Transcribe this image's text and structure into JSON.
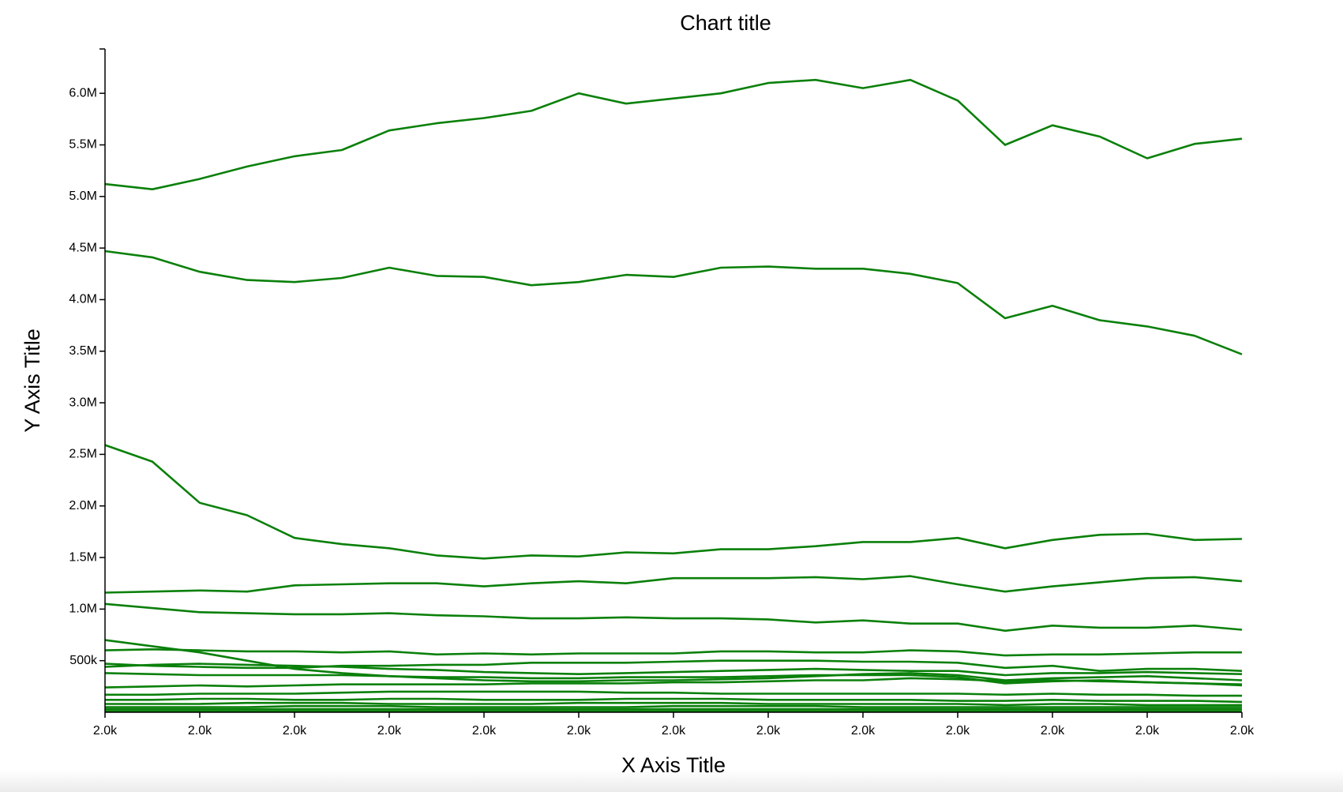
{
  "chart_data": {
    "type": "line",
    "title": "Chart title",
    "x_label": "X Axis Title",
    "y_label": "Y Axis Title",
    "color": "#0a800a",
    "x": [
      2000,
      2001,
      2002,
      2003,
      2004,
      2005,
      2006,
      2007,
      2008,
      2009,
      2010,
      2011,
      2012,
      2013,
      2014,
      2015,
      2016,
      2017,
      2018,
      2019,
      2020,
      2021,
      2022,
      2023,
      2024
    ],
    "xlim": [
      2000,
      2024
    ],
    "xticks": [
      {
        "value": 2000,
        "label": "2.0k"
      },
      {
        "value": 2002,
        "label": "2.0k"
      },
      {
        "value": 2004,
        "label": "2.0k"
      },
      {
        "value": 2006,
        "label": "2.0k"
      },
      {
        "value": 2008,
        "label": "2.0k"
      },
      {
        "value": 2010,
        "label": "2.0k"
      },
      {
        "value": 2012,
        "label": "2.0k"
      },
      {
        "value": 2014,
        "label": "2.0k"
      },
      {
        "value": 2016,
        "label": "2.0k"
      },
      {
        "value": 2018,
        "label": "2.0k"
      },
      {
        "value": 2020,
        "label": "2.0k"
      },
      {
        "value": 2022,
        "label": "2.0k"
      },
      {
        "value": 2024,
        "label": "2.0k"
      }
    ],
    "ylim": [
      0,
      6430000
    ],
    "yticks": [
      {
        "value": 500000,
        "label": "500k"
      },
      {
        "value": 1000000,
        "label": "1.0M"
      },
      {
        "value": 1500000,
        "label": "1.5M"
      },
      {
        "value": 2000000,
        "label": "2.0M"
      },
      {
        "value": 2500000,
        "label": "2.5M"
      },
      {
        "value": 3000000,
        "label": "3.0M"
      },
      {
        "value": 3500000,
        "label": "3.5M"
      },
      {
        "value": 4000000,
        "label": "4.0M"
      },
      {
        "value": 4500000,
        "label": "4.5M"
      },
      {
        "value": 5000000,
        "label": "5.0M"
      },
      {
        "value": 5500000,
        "label": "5.5M"
      },
      {
        "value": 6000000,
        "label": "6.0M"
      }
    ],
    "series": [
      {
        "values": [
          5120000,
          5070000,
          5170000,
          5290000,
          5390000,
          5450000,
          5640000,
          5710000,
          5760000,
          5830000,
          6000000,
          5900000,
          5950000,
          6000000,
          6100000,
          6130000,
          6050000,
          6130000,
          5930000,
          5500000,
          5690000,
          5580000,
          5370000,
          5510000,
          5560000
        ]
      },
      {
        "values": [
          4470000,
          4410000,
          4270000,
          4190000,
          4170000,
          4210000,
          4310000,
          4230000,
          4220000,
          4140000,
          4170000,
          4240000,
          4220000,
          4310000,
          4320000,
          4300000,
          4300000,
          4250000,
          4160000,
          3820000,
          3940000,
          3800000,
          3740000,
          3650000,
          3470000
        ]
      },
      {
        "values": [
          2590000,
          2430000,
          2030000,
          1910000,
          1690000,
          1630000,
          1590000,
          1520000,
          1490000,
          1520000,
          1510000,
          1550000,
          1540000,
          1580000,
          1580000,
          1610000,
          1650000,
          1650000,
          1690000,
          1590000,
          1670000,
          1720000,
          1730000,
          1670000,
          1680000
        ]
      },
      {
        "values": [
          1160000,
          1170000,
          1180000,
          1170000,
          1230000,
          1240000,
          1250000,
          1250000,
          1220000,
          1250000,
          1270000,
          1250000,
          1300000,
          1300000,
          1300000,
          1310000,
          1290000,
          1320000,
          1240000,
          1170000,
          1220000,
          1260000,
          1300000,
          1310000,
          1270000
        ]
      },
      {
        "values": [
          1050000,
          1010000,
          970000,
          960000,
          950000,
          950000,
          960000,
          940000,
          930000,
          910000,
          910000,
          920000,
          910000,
          910000,
          900000,
          870000,
          890000,
          860000,
          860000,
          790000,
          840000,
          820000,
          820000,
          840000,
          800000
        ]
      },
      {
        "values": [
          600000,
          610000,
          600000,
          590000,
          590000,
          580000,
          590000,
          560000,
          570000,
          560000,
          570000,
          570000,
          570000,
          590000,
          590000,
          580000,
          580000,
          600000,
          590000,
          550000,
          560000,
          560000,
          570000,
          580000,
          580000
        ]
      },
      {
        "values": [
          700000,
          640000,
          580000,
          500000,
          420000,
          380000,
          350000,
          330000,
          310000,
          300000,
          300000,
          310000,
          310000,
          320000,
          330000,
          350000,
          370000,
          380000,
          360000,
          310000,
          330000,
          340000,
          350000,
          330000,
          310000
        ]
      },
      {
        "values": [
          470000,
          450000,
          440000,
          430000,
          430000,
          450000,
          450000,
          460000,
          460000,
          480000,
          480000,
          480000,
          490000,
          500000,
          500000,
          500000,
          490000,
          490000,
          480000,
          430000,
          450000,
          400000,
          420000,
          420000,
          400000
        ]
      },
      {
        "values": [
          440000,
          460000,
          470000,
          460000,
          450000,
          440000,
          420000,
          410000,
          390000,
          380000,
          370000,
          380000,
          390000,
          400000,
          410000,
          420000,
          410000,
          400000,
          400000,
          360000,
          380000,
          380000,
          390000,
          380000,
          370000
        ]
      },
      {
        "values": [
          380000,
          370000,
          360000,
          360000,
          360000,
          360000,
          350000,
          340000,
          340000,
          330000,
          330000,
          340000,
          340000,
          340000,
          350000,
          360000,
          360000,
          360000,
          340000,
          280000,
          300000,
          310000,
          290000,
          280000,
          260000
        ]
      },
      {
        "values": [
          240000,
          250000,
          260000,
          250000,
          260000,
          270000,
          270000,
          270000,
          270000,
          280000,
          280000,
          280000,
          290000,
          290000,
          300000,
          310000,
          310000,
          330000,
          320000,
          300000,
          310000,
          300000,
          290000,
          280000,
          270000
        ]
      },
      {
        "values": [
          170000,
          170000,
          180000,
          180000,
          180000,
          190000,
          200000,
          200000,
          200000,
          200000,
          200000,
          190000,
          190000,
          180000,
          180000,
          180000,
          180000,
          180000,
          180000,
          170000,
          180000,
          170000,
          170000,
          160000,
          160000
        ]
      },
      {
        "values": [
          120000,
          120000,
          130000,
          130000,
          120000,
          120000,
          130000,
          130000,
          120000,
          120000,
          120000,
          130000,
          130000,
          130000,
          120000,
          120000,
          120000,
          120000,
          110000,
          110000,
          120000,
          110000,
          110000,
          110000,
          100000
        ]
      },
      {
        "values": [
          80000,
          80000,
          80000,
          90000,
          90000,
          90000,
          80000,
          80000,
          80000,
          80000,
          90000,
          90000,
          90000,
          90000,
          80000,
          80000,
          80000,
          80000,
          80000,
          70000,
          80000,
          80000,
          70000,
          70000,
          70000
        ]
      },
      {
        "values": [
          50000,
          50000,
          50000,
          50000,
          60000,
          60000,
          60000,
          50000,
          50000,
          50000,
          50000,
          50000,
          60000,
          60000,
          60000,
          60000,
          50000,
          50000,
          50000,
          50000,
          50000,
          50000,
          50000,
          50000,
          50000
        ]
      },
      {
        "values": [
          30000,
          30000,
          30000,
          30000,
          30000,
          30000,
          30000,
          30000,
          30000,
          30000,
          30000,
          30000,
          30000,
          30000,
          30000,
          30000,
          30000,
          30000,
          30000,
          30000,
          30000,
          30000,
          30000,
          30000,
          30000
        ]
      },
      {
        "values": [
          10000,
          10000,
          10000,
          10000,
          10000,
          10000,
          10000,
          10000,
          10000,
          10000,
          10000,
          10000,
          10000,
          10000,
          10000,
          10000,
          10000,
          10000,
          10000,
          10000,
          10000,
          10000,
          10000,
          10000,
          10000
        ]
      }
    ]
  }
}
